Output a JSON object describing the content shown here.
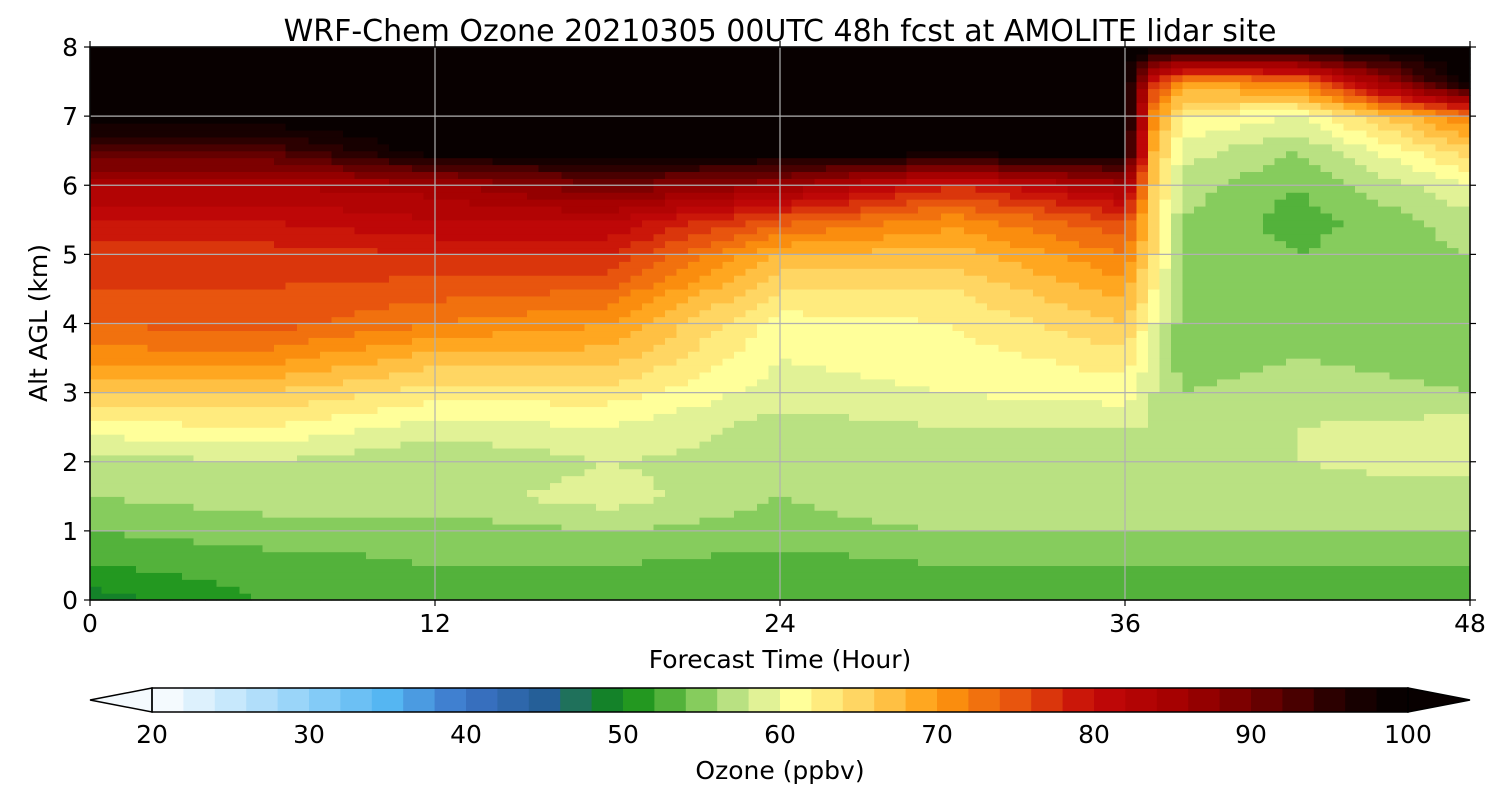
{
  "chart_data": {
    "type": "heatmap",
    "title": "WRF-Chem Ozone  20210305 00UTC 48h fcst at AMOLITE lidar site",
    "xlabel": "Forecast Time (Hour)",
    "ylabel": "Alt AGL (km)",
    "xlim": [
      0,
      48
    ],
    "ylim": [
      0,
      8
    ],
    "x_ticks": [
      "0",
      "12",
      "24",
      "36",
      "48"
    ],
    "y_ticks": [
      "0",
      "1",
      "2",
      "3",
      "4",
      "5",
      "6",
      "7",
      "8"
    ],
    "grid": true,
    "x": [
      0,
      6,
      12,
      18,
      24,
      30,
      36,
      37,
      38,
      42,
      48
    ],
    "y": [
      0,
      0.5,
      1.0,
      1.5,
      2.0,
      2.5,
      3.0,
      3.5,
      4.0,
      4.5,
      5.0,
      5.5,
      6.0,
      6.5,
      7.0,
      7.5,
      8.0
    ],
    "z": [
      [
        49,
        52,
        53,
        53,
        52,
        53,
        53,
        53,
        53,
        53,
        53
      ],
      [
        52,
        53,
        54,
        54,
        53,
        54,
        54,
        54,
        54,
        54,
        54
      ],
      [
        54,
        55,
        55,
        56,
        55,
        56,
        56,
        56,
        56,
        56,
        56
      ],
      [
        56,
        57,
        57,
        59,
        56,
        58,
        58,
        57,
        57,
        57,
        57
      ],
      [
        57,
        58,
        56,
        58,
        57,
        57,
        57,
        57,
        56,
        58,
        59
      ],
      [
        61,
        62,
        59,
        60,
        57,
        58,
        58,
        58,
        56,
        58,
        59
      ],
      [
        66,
        66,
        63,
        63,
        59,
        60,
        61,
        58,
        56,
        57,
        56
      ],
      [
        71,
        71,
        67,
        67,
        60,
        61,
        63,
        59,
        55,
        56,
        55
      ],
      [
        74,
        75,
        72,
        70,
        61,
        62,
        66,
        60,
        55,
        56,
        55
      ],
      [
        76,
        76,
        75,
        74,
        64,
        64,
        69,
        62,
        55,
        55,
        55
      ],
      [
        77,
        77,
        78,
        78,
        68,
        67,
        72,
        64,
        56,
        54,
        56
      ],
      [
        80,
        80,
        82,
        82,
        75,
        71,
        76,
        65,
        56,
        53,
        57
      ],
      [
        84,
        84,
        85,
        90,
        86,
        78,
        85,
        66,
        57,
        54,
        60
      ],
      [
        92,
        92,
        100,
        100,
        100,
        100,
        100,
        68,
        59,
        56,
        65
      ],
      [
        100,
        100,
        100,
        100,
        100,
        100,
        100,
        71,
        62,
        60,
        72
      ],
      [
        100,
        100,
        100,
        100,
        100,
        100,
        100,
        78,
        70,
        72,
        100
      ],
      [
        100,
        100,
        100,
        100,
        100,
        100,
        100,
        100,
        100,
        100,
        100
      ]
    ],
    "colorbar": {
      "label": "Ozone  (ppbv)",
      "min": 20,
      "max": 100,
      "step": 2,
      "extend": "both",
      "tick_values": [
        20,
        30,
        40,
        50,
        60,
        70,
        80,
        90,
        100
      ],
      "tick_labels": [
        "20",
        "30",
        "40",
        "50",
        "60",
        "70",
        "80",
        "90",
        "100"
      ],
      "color_stops": [
        {
          "value": 20,
          "color": "#ffffff"
        },
        {
          "value": 30,
          "color": "#8fd0f8"
        },
        {
          "value": 35,
          "color": "#55b6f2"
        },
        {
          "value": 40,
          "color": "#3b73c8"
        },
        {
          "value": 45,
          "color": "#255f98"
        },
        {
          "value": 48,
          "color": "#1c7a3c"
        },
        {
          "value": 50,
          "color": "#0b8a16"
        },
        {
          "value": 52,
          "color": "#3aa52a"
        },
        {
          "value": 55,
          "color": "#86cc5d"
        },
        {
          "value": 58,
          "color": "#d2ec94"
        },
        {
          "value": 61,
          "color": "#ffff9a"
        },
        {
          "value": 66,
          "color": "#ffcc55"
        },
        {
          "value": 70,
          "color": "#ff9b0e"
        },
        {
          "value": 75,
          "color": "#e8550e"
        },
        {
          "value": 80,
          "color": "#c40808"
        },
        {
          "value": 86,
          "color": "#a00000"
        },
        {
          "value": 91,
          "color": "#650000"
        },
        {
          "value": 96,
          "color": "#1e0000"
        },
        {
          "value": 100,
          "color": "#000000"
        }
      ]
    }
  }
}
